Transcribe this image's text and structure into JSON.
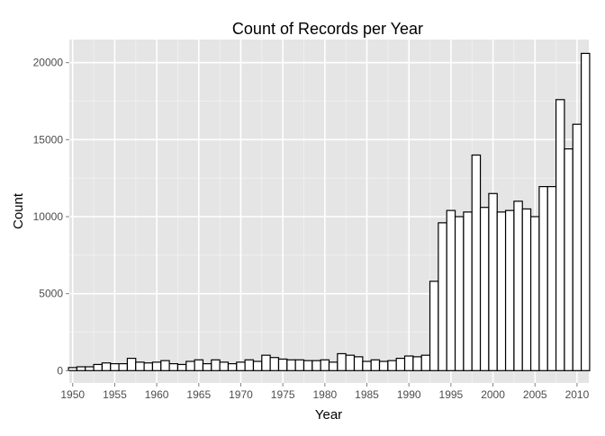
{
  "chart_data": {
    "type": "bar",
    "title": "Count of Records per Year",
    "xlabel": "Year",
    "ylabel": "Count",
    "x": [
      1950,
      1951,
      1952,
      1953,
      1954,
      1955,
      1956,
      1957,
      1958,
      1959,
      1960,
      1961,
      1962,
      1963,
      1964,
      1965,
      1966,
      1967,
      1968,
      1969,
      1970,
      1971,
      1972,
      1973,
      1974,
      1975,
      1976,
      1977,
      1978,
      1979,
      1980,
      1981,
      1982,
      1983,
      1984,
      1985,
      1986,
      1987,
      1988,
      1989,
      1990,
      1991,
      1992,
      1993,
      1994,
      1995,
      1996,
      1997,
      1998,
      1999,
      2000,
      2001,
      2002,
      2003,
      2004,
      2005,
      2006,
      2007,
      2008,
      2009,
      2010,
      2011
    ],
    "values": [
      200,
      250,
      250,
      400,
      500,
      450,
      450,
      800,
      550,
      500,
      550,
      650,
      450,
      400,
      600,
      700,
      450,
      700,
      550,
      450,
      550,
      700,
      600,
      1000,
      850,
      750,
      700,
      700,
      650,
      650,
      700,
      550,
      1100,
      1000,
      900,
      600,
      700,
      600,
      650,
      800,
      950,
      900,
      1000,
      5800,
      9600,
      10400,
      10000,
      10300,
      14000,
      10600,
      11500,
      10300,
      10400,
      11000,
      10500,
      10000,
      11950,
      11950,
      17600,
      14400,
      16000,
      20600
    ],
    "xlim": [
      1949.6,
      2011.4
    ],
    "ylim": [
      -800,
      21500
    ],
    "x_ticks": [
      "1950",
      "1955",
      "1960",
      "1965",
      "1970",
      "1975",
      "1980",
      "1985",
      "1990",
      "1995",
      "2000",
      "2005",
      "2010"
    ],
    "y_ticks": [
      "0",
      "5000",
      "10000",
      "15000",
      "20000"
    ],
    "grid": true,
    "colors": {
      "panel_background": "#e5e5e5",
      "grid_major": "#ffffff",
      "grid_minor": "#f2f2f2",
      "bar_fill": "#ffffff",
      "bar_stroke": "#000000",
      "tick_text": "#4d4d4d"
    }
  }
}
